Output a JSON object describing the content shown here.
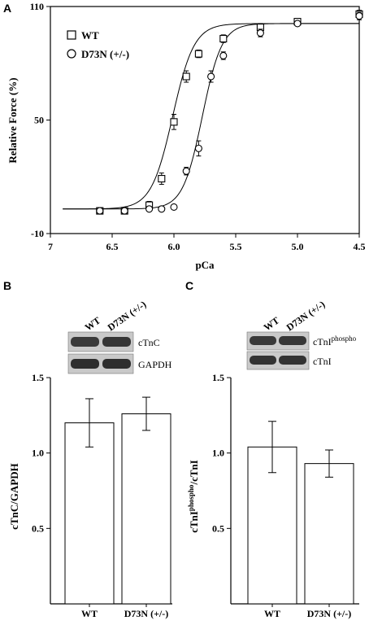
{
  "chart_data": [
    {
      "panel": "A",
      "type": "scatter",
      "xlabel": "pCa",
      "ylabel": "Relative Force (%)",
      "xlim": [
        7,
        4.5
      ],
      "ylim": [
        -10,
        110
      ],
      "x_ticks": [
        "7",
        "6.5",
        "6.0",
        "5.5",
        "5.0",
        "4.5"
      ],
      "y_ticks": [
        "-10",
        "50",
        "110"
      ],
      "legend_position": "top-left",
      "series": [
        {
          "name": "WT",
          "marker": "square",
          "x": [
            6.6,
            6.4,
            6.2,
            6.1,
            6.0,
            5.9,
            5.8,
            5.6,
            5.3,
            5.0,
            4.5
          ],
          "y": [
            2,
            2,
            5,
            19,
            49,
            73,
            85,
            93,
            99,
            102,
            106
          ],
          "err": [
            1,
            1,
            2,
            3,
            4,
            3,
            2,
            2,
            2,
            1,
            2
          ]
        },
        {
          "name": "D73N (+/-)",
          "marker": "circle",
          "x": [
            6.6,
            6.4,
            6.2,
            6.1,
            6.0,
            5.9,
            5.8,
            5.7,
            5.6,
            5.3,
            5.0,
            4.5
          ],
          "y": [
            2,
            2,
            3,
            3,
            4,
            23,
            35,
            73,
            84,
            96,
            101,
            105
          ],
          "err": [
            1,
            1,
            1,
            1,
            1,
            2,
            4,
            3,
            2,
            2,
            1,
            2
          ]
        }
      ],
      "fit_curves": [
        {
          "series": "WT",
          "pCa50": 6.01,
          "hill": 5.0,
          "bottom": 3,
          "top": 101
        },
        {
          "series": "D73N (+/-)",
          "pCa50": 5.77,
          "hill": 5.5,
          "bottom": 3,
          "top": 101
        }
      ]
    },
    {
      "panel": "B",
      "type": "bar",
      "categories": [
        "WT",
        "D73N (+/-)"
      ],
      "values": [
        1.2,
        1.26
      ],
      "errors": [
        0.16,
        0.11
      ],
      "ylabel": "cTnC/GAPDH",
      "ylim": [
        0,
        1.5
      ],
      "y_ticks": [
        "0.5",
        "1.0",
        "1.5"
      ],
      "blot_columns": [
        "WT",
        "D73N (+/-)"
      ],
      "blot_rows": [
        "cTnC",
        "GAPDH"
      ]
    },
    {
      "panel": "C",
      "type": "bar",
      "categories": [
        "WT",
        "D73N (+/-)"
      ],
      "values": [
        1.04,
        0.93
      ],
      "errors": [
        0.17,
        0.09
      ],
      "ylabel": "cTnI",
      "ylabel_sup": "phospho",
      "ylabel_suffix": "/cTnI",
      "ylim": [
        0,
        1.5
      ],
      "y_ticks": [
        "0.5",
        "1.0",
        "1.5"
      ],
      "blot_columns": [
        "WT",
        "D73N (+/-)"
      ],
      "blot_rows": [
        "cTnI",
        "cTnI"
      ],
      "blot_row_sup": [
        "phospho",
        ""
      ]
    }
  ]
}
